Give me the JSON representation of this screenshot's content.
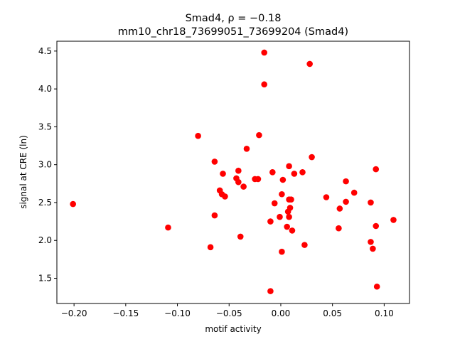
{
  "chart_data": {
    "type": "scatter",
    "title_line1": "Smad4, ρ = −0.18",
    "title_line2": "mm10_chr18_73699051_73699204 (Smad4)",
    "xlabel": "motif activity",
    "ylabel": "signal at CRE (ln)",
    "xlim": [
      -0.2166,
      0.1245
    ],
    "ylim": [
      1.167,
      4.63
    ],
    "xticks": [
      -0.2,
      -0.15,
      -0.1,
      -0.05,
      0.0,
      0.05,
      0.1
    ],
    "xtick_labels": [
      "−0.20",
      "−0.15",
      "−0.10",
      "−0.05",
      "0.00",
      "0.05",
      "0.10"
    ],
    "yticks": [
      1.5,
      2.0,
      2.5,
      3.0,
      3.5,
      4.0,
      4.5
    ],
    "ytick_labels": [
      "1.5",
      "2.0",
      "2.5",
      "3.0",
      "3.5",
      "4.0",
      "4.5"
    ],
    "marker_color": "#ff0000",
    "points": [
      [
        -0.201,
        2.48
      ],
      [
        -0.109,
        2.17
      ],
      [
        -0.08,
        3.38
      ],
      [
        -0.068,
        1.91
      ],
      [
        -0.064,
        3.04
      ],
      [
        -0.064,
        2.33
      ],
      [
        -0.059,
        2.66
      ],
      [
        -0.056,
        2.88
      ],
      [
        -0.057,
        2.61
      ],
      [
        -0.054,
        2.58
      ],
      [
        -0.043,
        2.82
      ],
      [
        -0.041,
        2.92
      ],
      [
        -0.041,
        2.77
      ],
      [
        -0.039,
        2.05
      ],
      [
        -0.036,
        2.71
      ],
      [
        -0.033,
        3.21
      ],
      [
        -0.025,
        2.81
      ],
      [
        -0.022,
        2.81
      ],
      [
        -0.021,
        3.39
      ],
      [
        -0.016,
        4.48
      ],
      [
        -0.016,
        4.06
      ],
      [
        -0.01,
        2.25
      ],
      [
        -0.01,
        1.33
      ],
      [
        -0.008,
        2.9
      ],
      [
        -0.006,
        2.49
      ],
      [
        -0.001,
        2.31
      ],
      [
        0.001,
        2.61
      ],
      [
        0.001,
        1.85
      ],
      [
        0.002,
        2.8
      ],
      [
        0.006,
        2.18
      ],
      [
        0.007,
        2.38
      ],
      [
        0.008,
        2.31
      ],
      [
        0.008,
        2.98
      ],
      [
        0.008,
        2.54
      ],
      [
        0.009,
        2.43
      ],
      [
        0.01,
        2.54
      ],
      [
        0.011,
        2.13
      ],
      [
        0.013,
        2.88
      ],
      [
        0.021,
        2.9
      ],
      [
        0.023,
        1.94
      ],
      [
        0.028,
        4.33
      ],
      [
        0.03,
        3.1
      ],
      [
        0.044,
        2.57
      ],
      [
        0.056,
        2.16
      ],
      [
        0.057,
        2.42
      ],
      [
        0.063,
        2.78
      ],
      [
        0.063,
        2.51
      ],
      [
        0.071,
        2.63
      ],
      [
        0.087,
        2.5
      ],
      [
        0.087,
        1.98
      ],
      [
        0.089,
        1.89
      ],
      [
        0.092,
        2.94
      ],
      [
        0.092,
        2.19
      ],
      [
        0.093,
        1.39
      ],
      [
        0.109,
        2.27
      ]
    ]
  }
}
